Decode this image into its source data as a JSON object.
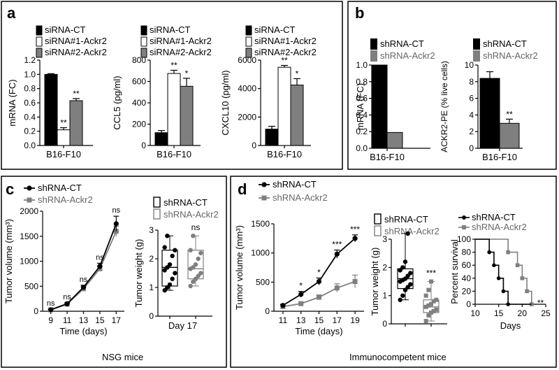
{
  "colors": {
    "black": "#000000",
    "white": "#ffffff",
    "gray": "#7f7f7f",
    "lightgray": "#a6a6a6"
  },
  "panels": {
    "a": {
      "letter": "a",
      "legend": [
        "siRNA-CT",
        "siRNA#1-Ackr2",
        "siRNA#2-Ackr2"
      ],
      "group_label": "B16-F10"
    },
    "b": {
      "letter": "b",
      "legend": [
        "shRNA-CT",
        "shRNA-Ackr2"
      ],
      "group_label": "B16-F10"
    },
    "c": {
      "letter": "c",
      "legend": [
        "shRNA-CT",
        "shRNA-Ackr2"
      ],
      "caption": "NSG mice"
    },
    "d": {
      "letter": "d",
      "legend": [
        "shRNA-CT",
        "shRNA-Ackr2"
      ],
      "caption": "Immunocompetent mice"
    }
  },
  "chart_data": [
    {
      "id": "a1",
      "type": "bar",
      "ylabel": "mRNA (FC)",
      "ylim": [
        0,
        1.2
      ],
      "yticks": [
        "0.0",
        "0.2",
        "0.4",
        "0.6",
        "0.8",
        "1.0",
        "1.2"
      ],
      "series": [
        {
          "name": "siRNA-CT",
          "value": 1.0,
          "err": 0.01
        },
        {
          "name": "siRNA#1-Ackr2",
          "value": 0.22,
          "err": 0.03
        },
        {
          "name": "siRNA#2-Ackr2",
          "value": 0.63,
          "err": 0.03
        }
      ],
      "sig": [
        "",
        "**",
        "**"
      ],
      "xlabel": "B16-F10"
    },
    {
      "id": "a2",
      "type": "bar",
      "ylabel": "CCL5 (pg/ml)",
      "ylim": [
        0,
        800
      ],
      "yticks": [
        "0",
        "200",
        "400",
        "600",
        "800"
      ],
      "series": [
        {
          "name": "siRNA-CT",
          "value": 120,
          "err": 20
        },
        {
          "name": "siRNA#1-Ackr2",
          "value": 675,
          "err": 30
        },
        {
          "name": "siRNA#2-Ackr2",
          "value": 555,
          "err": 75
        }
      ],
      "sig": [
        "",
        "**",
        "*"
      ],
      "xlabel": "B16-F10"
    },
    {
      "id": "a3",
      "type": "bar",
      "ylabel": "CXCL10 (pg/ml)",
      "ylim": [
        0,
        6000
      ],
      "yticks": [
        "0",
        "2000",
        "4000",
        "6000"
      ],
      "series": [
        {
          "name": "siRNA-CT",
          "value": 1150,
          "err": 200
        },
        {
          "name": "siRNA#1-Ackr2",
          "value": 5500,
          "err": 130
        },
        {
          "name": "siRNA#2-Ackr2",
          "value": 4250,
          "err": 450
        }
      ],
      "sig": [
        "",
        "**",
        "*"
      ],
      "xlabel": "B16-F10"
    },
    {
      "id": "b1",
      "type": "bar",
      "ylabel": "mRNA (FC)",
      "ylim": [
        0,
        1.0
      ],
      "yticks": [
        "0.0",
        "0.2",
        "0.4",
        "0.6",
        "0.8",
        "1.0"
      ],
      "series": [
        {
          "name": "shRNA-CT",
          "value": 1.0,
          "err": 0
        },
        {
          "name": "shRNA-Ackr2",
          "value": 0.19,
          "err": 0
        }
      ],
      "sig": [
        "",
        ""
      ],
      "xlabel": "B16-F10"
    },
    {
      "id": "b2",
      "type": "bar",
      "ylabel": "ACKR2-PE (% live cells)",
      "ylim": [
        0,
        10
      ],
      "yticks": [
        "0",
        "2",
        "4",
        "6",
        "8",
        "10"
      ],
      "series": [
        {
          "name": "shRNA-CT",
          "value": 8.4,
          "err": 0.8
        },
        {
          "name": "shRNA-Ackr2",
          "value": 3.0,
          "err": 0.5
        }
      ],
      "sig": [
        "",
        "**"
      ],
      "xlabel": "B16-F10"
    },
    {
      "id": "c1",
      "type": "line",
      "ylabel": "Tumor volume (mm³)",
      "xlabel": "Time (days)",
      "ylim": [
        0,
        2000
      ],
      "xlim": [
        8,
        18
      ],
      "x": [
        9,
        11,
        13,
        15,
        17
      ],
      "yticks": [
        "0",
        "500",
        "1000",
        "1500",
        "2000"
      ],
      "xticks": [
        "9",
        "11",
        "13",
        "15",
        "17"
      ],
      "series": [
        {
          "name": "shRNA-CT",
          "values": [
            30,
            150,
            480,
            900,
            1750
          ],
          "err": [
            10,
            20,
            40,
            60,
            150
          ]
        },
        {
          "name": "shRNA-Ackr2",
          "values": [
            28,
            140,
            450,
            850,
            1600
          ],
          "err": [
            10,
            20,
            35,
            50,
            100
          ]
        }
      ],
      "sig": [
        "ns",
        "ns",
        "ns",
        "ns",
        "ns"
      ]
    },
    {
      "id": "c2",
      "type": "scatter",
      "ylabel": "Tumor weight (g)",
      "xlabel": "Day 17",
      "ylim": [
        0,
        3
      ],
      "yticks": [
        "0",
        "1",
        "2",
        "3"
      ],
      "groups": [
        {
          "name": "shRNA-CT",
          "q1": 1.05,
          "median": 1.7,
          "q3": 2.3,
          "min": 0.9,
          "max": 2.8,
          "points": [
            0.9,
            1.0,
            1.1,
            1.3,
            1.5,
            1.6,
            1.7,
            1.8,
            2.1,
            2.3,
            2.4,
            2.8
          ]
        },
        {
          "name": "shRNA-Ackr2",
          "q1": 1.3,
          "median": 1.65,
          "q3": 2.3,
          "min": 1.05,
          "max": 2.8,
          "points": [
            1.05,
            1.2,
            1.3,
            1.4,
            1.5,
            1.65,
            1.7,
            1.8,
            2.0,
            2.2,
            2.3,
            2.8
          ]
        }
      ],
      "sig": [
        "",
        "ns"
      ]
    },
    {
      "id": "d1",
      "type": "line",
      "ylabel": "Tumor volume (mm³)",
      "xlabel": "Time (days)",
      "ylim": [
        0,
        1500
      ],
      "xlim": [
        10,
        20
      ],
      "x": [
        11,
        13,
        15,
        17,
        19
      ],
      "yticks": [
        "0",
        "500",
        "1000",
        "1500"
      ],
      "xticks": [
        "11",
        "13",
        "15",
        "17",
        "19"
      ],
      "series": [
        {
          "name": "shRNA-CT",
          "values": [
            100,
            290,
            510,
            980,
            1250
          ],
          "err": [
            20,
            50,
            60,
            70,
            60
          ]
        },
        {
          "name": "shRNA-Ackr2",
          "values": [
            80,
            130,
            240,
            400,
            510
          ],
          "err": [
            20,
            30,
            40,
            70,
            110
          ]
        }
      ],
      "sig": [
        "",
        "*",
        "*",
        "***",
        "***"
      ]
    },
    {
      "id": "d2",
      "type": "scatter",
      "ylabel": "Tumor weight (g)",
      "ylim": [
        0,
        3
      ],
      "yticks": [
        "0",
        "1",
        "2",
        "3"
      ],
      "groups": [
        {
          "name": "shRNA-CT",
          "q1": 1.25,
          "median": 1.6,
          "q3": 1.95,
          "min": 0.85,
          "max": 3.2,
          "points": [
            0.85,
            1.0,
            1.2,
            1.3,
            1.4,
            1.5,
            1.55,
            1.6,
            1.7,
            1.8,
            1.9,
            2.0,
            2.2,
            3.2
          ]
        },
        {
          "name": "shRNA-Ackr2",
          "q1": 0.4,
          "median": 0.6,
          "q3": 0.85,
          "min": 0.1,
          "max": 1.5,
          "points": [
            0.1,
            0.3,
            0.4,
            0.45,
            0.5,
            0.6,
            0.65,
            0.7,
            0.8,
            0.85,
            1.0,
            1.2,
            1.5
          ]
        }
      ],
      "sig": [
        "",
        "***"
      ]
    },
    {
      "id": "d3",
      "type": "line",
      "ylabel": "Percent survival",
      "xlabel": "Days",
      "ylim": [
        0,
        100
      ],
      "xlim": [
        10,
        25
      ],
      "yticks": [
        "0",
        "20",
        "40",
        "60",
        "80",
        "100"
      ],
      "xticks": [
        "10",
        "15",
        "20",
        "25"
      ],
      "series": [
        {
          "name": "shRNA-CT",
          "steps": [
            [
              10,
              100
            ],
            [
              13,
              100
            ],
            [
              13,
              80
            ],
            [
              14,
              80
            ],
            [
              14,
              60
            ],
            [
              15,
              60
            ],
            [
              15,
              40
            ],
            [
              16,
              40
            ],
            [
              16,
              20
            ],
            [
              17,
              20
            ],
            [
              17,
              0
            ],
            [
              22,
              0
            ]
          ],
          "markers": [
            [
              13,
              80
            ],
            [
              14,
              60
            ],
            [
              15,
              40
            ],
            [
              16,
              20
            ],
            [
              17,
              0
            ]
          ]
        },
        {
          "name": "shRNA-Ackr2",
          "steps": [
            [
              10,
              100
            ],
            [
              17,
              100
            ],
            [
              17,
              80
            ],
            [
              19,
              80
            ],
            [
              19,
              60
            ],
            [
              20,
              60
            ],
            [
              20,
              40
            ],
            [
              21,
              40
            ],
            [
              21,
              20
            ],
            [
              22,
              20
            ],
            [
              22,
              0
            ]
          ],
          "markers": [
            [
              17,
              80
            ],
            [
              19,
              60
            ],
            [
              20,
              40
            ],
            [
              21,
              20
            ],
            [
              22,
              0
            ]
          ]
        }
      ],
      "sig": "**"
    }
  ]
}
